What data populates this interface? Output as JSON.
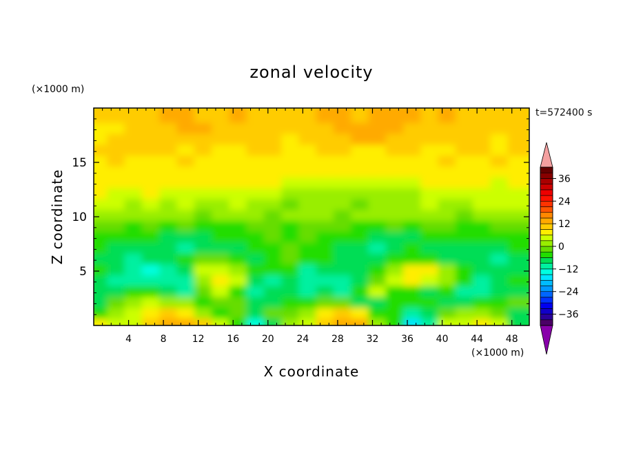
{
  "chart_data": {
    "type": "heatmap",
    "title": "zonal velocity",
    "xlabel": "X coordinate",
    "ylabel": "Z coordinate",
    "x_unit": "(×1000 m)",
    "y_unit": "(×1000 m)",
    "time_label": "t=572400 s",
    "xlim": [
      0,
      50
    ],
    "ylim": [
      0,
      20
    ],
    "x_ticks": [
      4,
      8,
      12,
      16,
      20,
      24,
      28,
      32,
      36,
      40,
      44,
      48
    ],
    "y_ticks": [
      5,
      10,
      15
    ],
    "colorbar": {
      "levels": [
        -42,
        -39,
        -36,
        -33,
        -30,
        -27,
        -24,
        -21,
        -18,
        -15,
        -12,
        -9,
        -6,
        -3,
        0,
        3,
        6,
        9,
        12,
        15,
        18,
        21,
        24,
        27,
        30,
        33,
        36,
        39,
        42
      ],
      "tick_values": [
        -36,
        -24,
        -12,
        0,
        12,
        24,
        36
      ],
      "colors": [
        "#4b0066",
        "#2a009a",
        "#1100c8",
        "#0000f0",
        "#0033ff",
        "#0066ff",
        "#0099ff",
        "#00bbff",
        "#00e5ff",
        "#00ffe0",
        "#00f0a0",
        "#00dd55",
        "#22dd00",
        "#66dd00",
        "#99ee00",
        "#ccff00",
        "#ffee00",
        "#ffcc00",
        "#ffaa00",
        "#ff8800",
        "#ff5500",
        "#ff3300",
        "#ff1100",
        "#ee0000",
        "#cc0000",
        "#aa0000",
        "#880000",
        "#660000"
      ],
      "over_color": "#f4a0a0",
      "under_color": "#8800aa"
    },
    "z_levels": [
      0.5,
      1.5,
      2.5,
      3.5,
      4.5,
      5.5,
      6.5,
      7.5,
      8.5,
      9.5,
      10.5,
      11.5,
      12.5,
      13.5,
      14.5,
      15.5,
      16.5,
      17.5,
      18.5,
      19.5
    ],
    "x_cells": [
      1,
      3,
      5,
      7,
      9,
      11,
      13,
      15,
      17,
      19,
      21,
      23,
      25,
      27,
      29,
      31,
      33,
      35,
      37,
      39,
      41,
      43,
      45,
      47,
      49
    ],
    "values": [
      [
        8,
        4,
        4,
        10,
        12,
        14,
        9,
        3,
        -5,
        -14,
        -9,
        2,
        4,
        10,
        14,
        12,
        2,
        -6,
        -16,
        -12,
        3,
        4,
        6,
        3,
        -8
      ],
      [
        -4,
        2,
        5,
        8,
        10,
        7,
        2,
        -4,
        -3,
        -7,
        -3,
        -2,
        2,
        8,
        10,
        6,
        -4,
        -6,
        -12,
        -9,
        -3,
        2,
        2,
        -3,
        -9
      ],
      [
        -8,
        -3,
        2,
        3,
        2,
        0,
        -5,
        -2,
        -3,
        -8,
        -8,
        -6,
        -5,
        -3,
        -2,
        -8,
        -9,
        -4,
        -5,
        -6,
        -7,
        -8,
        -6,
        -4,
        -3
      ],
      [
        -9,
        -8,
        -5,
        -6,
        -8,
        -10,
        -3,
        3,
        -4,
        -12,
        -9,
        -7,
        -10,
        -9,
        -11,
        -6,
        4,
        -6,
        -5,
        -7,
        -5,
        -10,
        -11,
        -8,
        -7
      ],
      [
        -7,
        -10,
        -12,
        -11,
        -10,
        -11,
        2,
        8,
        4,
        -8,
        -10,
        -8,
        -12,
        -12,
        -10,
        -9,
        -3,
        3,
        8,
        4,
        2,
        -5,
        -10,
        -9,
        -6
      ],
      [
        -6,
        -8,
        -12,
        -14,
        -12,
        -9,
        4,
        5,
        2,
        -4,
        -6,
        -4,
        -10,
        -8,
        -9,
        -8,
        -6,
        2,
        6,
        8,
        1,
        -5,
        -9,
        -8,
        -7
      ],
      [
        -7,
        -9,
        -10,
        -9,
        -8,
        -5,
        -2,
        -3,
        -6,
        -7,
        -4,
        -2,
        -6,
        -5,
        -7,
        -9,
        -8,
        -5,
        -4,
        -6,
        -8,
        -8,
        -9,
        -10,
        -8
      ],
      [
        -5,
        -8,
        -8,
        -7,
        -9,
        -10,
        -9,
        -8,
        -7,
        -6,
        -5,
        -2,
        -4,
        -6,
        -8,
        -9,
        -10,
        -7,
        -6,
        -8,
        -9,
        -8,
        -7,
        -8,
        -6
      ],
      [
        -4,
        -5,
        -6,
        -5,
        -7,
        -8,
        -7,
        -6,
        -5,
        -4,
        -3,
        -4,
        -3,
        -4,
        -5,
        -6,
        -7,
        -8,
        -7,
        -5,
        -6,
        -4,
        -5,
        -6,
        -4
      ],
      [
        -3,
        -3,
        -4,
        -3,
        -4,
        -3,
        -4,
        -5,
        -4,
        -3,
        -3,
        -4,
        -3,
        -2,
        -3,
        -4,
        -5,
        -3,
        -4,
        -3,
        -3,
        -4,
        -4,
        -3,
        -2
      ],
      [
        1,
        0,
        1,
        2,
        1,
        0,
        -1,
        0,
        1,
        0,
        -1,
        0,
        1,
        0,
        -1,
        0,
        1,
        0,
        0,
        1,
        0,
        -1,
        1,
        2,
        1
      ],
      [
        4,
        3,
        2,
        3,
        2,
        3,
        1,
        2,
        3,
        2,
        1,
        -1,
        1,
        2,
        0,
        -1,
        1,
        2,
        1,
        3,
        2,
        1,
        3,
        4,
        3
      ],
      [
        6,
        5,
        5,
        6,
        5,
        5,
        4,
        4,
        5,
        4,
        4,
        1,
        0,
        2,
        1,
        0,
        2,
        1,
        0,
        3,
        4,
        5,
        4,
        5,
        5
      ],
      [
        7,
        6,
        6,
        7,
        8,
        7,
        6,
        6,
        7,
        6,
        6,
        5,
        4,
        5,
        5,
        4,
        5,
        4,
        5,
        6,
        6,
        7,
        6,
        5,
        6
      ],
      [
        8,
        7,
        8,
        7,
        7,
        8,
        7,
        7,
        8,
        7,
        7,
        6,
        7,
        6,
        7,
        7,
        6,
        7,
        7,
        7,
        8,
        8,
        7,
        8,
        7
      ],
      [
        8,
        9,
        8,
        7,
        8,
        9,
        8,
        8,
        7,
        8,
        8,
        7,
        7,
        8,
        8,
        7,
        8,
        8,
        7,
        8,
        9,
        8,
        8,
        9,
        8
      ],
      [
        9,
        9,
        9,
        10,
        9,
        8,
        9,
        8,
        8,
        9,
        9,
        8,
        8,
        9,
        9,
        8,
        8,
        9,
        9,
        8,
        8,
        9,
        9,
        8,
        9
      ],
      [
        8,
        9,
        9,
        11,
        11,
        10,
        9,
        9,
        9,
        10,
        9,
        8,
        9,
        10,
        11,
        12,
        12,
        11,
        10,
        9,
        9,
        10,
        9,
        8,
        9
      ],
      [
        8,
        8,
        9,
        10,
        11,
        12,
        12,
        11,
        10,
        9,
        10,
        11,
        9,
        11,
        12,
        13,
        12,
        12,
        11,
        10,
        10,
        11,
        10,
        10,
        9
      ],
      [
        9,
        9,
        10,
        11,
        12,
        12,
        11,
        11,
        12,
        11,
        10,
        10,
        11,
        12,
        12,
        11,
        12,
        13,
        12,
        11,
        12,
        11,
        10,
        11,
        10
      ]
    ]
  }
}
